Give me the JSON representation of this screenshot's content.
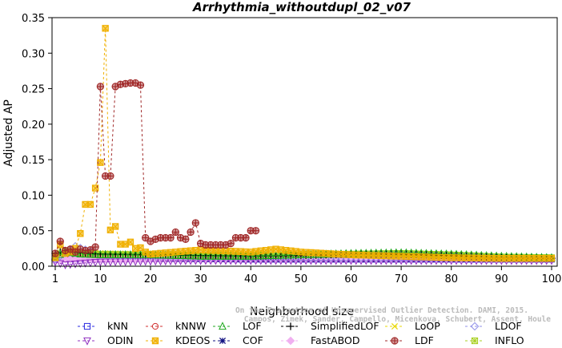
{
  "chart_data": {
    "type": "line",
    "title": "Arrhythmia_withoutdupl_02_v07",
    "xlabel": "Neighborhood size",
    "ylabel": "Adjusted AP",
    "xlim": [
      1,
      100
    ],
    "ylim": [
      0,
      0.35
    ],
    "xticks": [
      1,
      10,
      20,
      30,
      40,
      50,
      60,
      70,
      80,
      90,
      100
    ],
    "yticks": [
      "0.00",
      "0.05",
      "0.10",
      "0.15",
      "0.20",
      "0.25",
      "0.30",
      "0.35"
    ],
    "grid": false,
    "legend_position": "bottom",
    "watermark": [
      "Campos, Zimek, Sander, Campello, Micenkova, Schubert, Assent, Houle",
      "On the Evaluation of Unsupervised Outlier Detection. DAMI, 2015."
    ],
    "series": [
      {
        "name": "kNN",
        "color": "#2929e0",
        "marker": "square",
        "max_k": 100,
        "points": [
          [
            1,
            0.011
          ],
          [
            5,
            0.01
          ],
          [
            10,
            0.011
          ],
          [
            20,
            0.011
          ],
          [
            40,
            0.01
          ],
          [
            60,
            0.01
          ],
          [
            80,
            0.01
          ],
          [
            100,
            0.01
          ]
        ]
      },
      {
        "name": "kNNW",
        "color": "#d03030",
        "marker": "circle",
        "max_k": 100,
        "points": [
          [
            1,
            0.011
          ],
          [
            5,
            0.011
          ],
          [
            10,
            0.011
          ],
          [
            20,
            0.011
          ],
          [
            40,
            0.01
          ],
          [
            60,
            0.01
          ],
          [
            80,
            0.01
          ],
          [
            100,
            0.01
          ]
        ]
      },
      {
        "name": "LOF",
        "color": "#22aa22",
        "marker": "triangle",
        "max_k": 100,
        "points": [
          [
            1,
            0.013
          ],
          [
            3,
            0.02
          ],
          [
            6,
            0.017
          ],
          [
            10,
            0.016
          ],
          [
            20,
            0.016
          ],
          [
            30,
            0.014
          ],
          [
            40,
            0.014
          ],
          [
            50,
            0.016
          ],
          [
            60,
            0.018
          ],
          [
            70,
            0.019
          ],
          [
            80,
            0.017
          ],
          [
            90,
            0.014
          ],
          [
            100,
            0.012
          ]
        ]
      },
      {
        "name": "SimplifiedLOF",
        "color": "#000000",
        "marker": "plus",
        "max_k": 100,
        "points": [
          [
            1,
            0.018
          ],
          [
            3,
            0.022
          ],
          [
            6,
            0.019
          ],
          [
            10,
            0.017
          ],
          [
            20,
            0.016
          ],
          [
            30,
            0.015
          ],
          [
            40,
            0.014
          ],
          [
            50,
            0.015
          ],
          [
            60,
            0.017
          ],
          [
            70,
            0.017
          ],
          [
            80,
            0.015
          ],
          [
            90,
            0.012
          ],
          [
            100,
            0.011
          ]
        ]
      },
      {
        "name": "LoOP",
        "color": "#e8d800",
        "marker": "x",
        "max_k": 100,
        "points": [
          [
            1,
            0.015
          ],
          [
            3,
            0.02
          ],
          [
            6,
            0.02
          ],
          [
            10,
            0.018
          ],
          [
            20,
            0.017
          ],
          [
            30,
            0.016
          ],
          [
            40,
            0.015
          ],
          [
            50,
            0.016
          ],
          [
            60,
            0.017
          ],
          [
            70,
            0.017
          ],
          [
            80,
            0.015
          ],
          [
            90,
            0.012
          ],
          [
            100,
            0.011
          ]
        ]
      },
      {
        "name": "LDOF",
        "color": "#9090e8",
        "marker": "diamond",
        "max_k": 100,
        "points": [
          [
            1,
            0.01
          ],
          [
            5,
            0.028
          ],
          [
            10,
            0.016
          ],
          [
            20,
            0.014
          ],
          [
            40,
            0.013
          ],
          [
            60,
            0.012
          ],
          [
            80,
            0.012
          ],
          [
            100,
            0.011
          ]
        ]
      },
      {
        "name": "ODIN",
        "color": "#9030c0",
        "marker": "triangle-down",
        "max_k": 100,
        "points": [
          [
            1,
            0.006
          ],
          [
            3,
            0.002
          ],
          [
            6,
            0.004
          ],
          [
            10,
            0.006
          ],
          [
            20,
            0.007
          ],
          [
            30,
            0.008
          ],
          [
            50,
            0.008
          ],
          [
            70,
            0.008
          ],
          [
            100,
            0.008
          ]
        ]
      },
      {
        "name": "KDEOS",
        "color": "#f0b000",
        "marker": "square-x",
        "max_k": 100,
        "points": [
          [
            1,
            0.012
          ],
          [
            2,
            0.03
          ],
          [
            3,
            0.018
          ],
          [
            4,
            0.02
          ],
          [
            5,
            0.025
          ],
          [
            6,
            0.046
          ],
          [
            7,
            0.087
          ],
          [
            8,
            0.087
          ],
          [
            9,
            0.11
          ],
          [
            10,
            0.146
          ],
          [
            11,
            0.335
          ],
          [
            12,
            0.051
          ],
          [
            13,
            0.056
          ],
          [
            14,
            0.031
          ],
          [
            15,
            0.031
          ],
          [
            16,
            0.034
          ],
          [
            17,
            0.025
          ],
          [
            18,
            0.026
          ],
          [
            19,
            0.02
          ],
          [
            20,
            0.017
          ],
          [
            25,
            0.02
          ],
          [
            30,
            0.023
          ],
          [
            40,
            0.02
          ],
          [
            45,
            0.024
          ],
          [
            50,
            0.02
          ],
          [
            60,
            0.016
          ],
          [
            70,
            0.014
          ],
          [
            80,
            0.012
          ],
          [
            90,
            0.011
          ],
          [
            100,
            0.011
          ]
        ]
      },
      {
        "name": "COF",
        "color": "#101080",
        "marker": "star",
        "max_k": 100,
        "points": [
          [
            1,
            0.01
          ],
          [
            5,
            0.012
          ],
          [
            10,
            0.01
          ],
          [
            20,
            0.011
          ],
          [
            40,
            0.01
          ],
          [
            60,
            0.01
          ],
          [
            80,
            0.01
          ],
          [
            100,
            0.01
          ]
        ]
      },
      {
        "name": "FastABOD",
        "color": "#f0b0f0",
        "marker": "diamond-filled",
        "max_k": 100,
        "points": [
          [
            1,
            0.008
          ],
          [
            3,
            0.01
          ],
          [
            5,
            0.01
          ],
          [
            10,
            0.01
          ],
          [
            20,
            0.01
          ],
          [
            40,
            0.01
          ],
          [
            60,
            0.01
          ],
          [
            80,
            0.01
          ],
          [
            100,
            0.01
          ]
        ]
      },
      {
        "name": "LDF",
        "color": "#a02828",
        "marker": "circle-plus",
        "max_k": 41,
        "points": [
          [
            1,
            0.018
          ],
          [
            2,
            0.035
          ],
          [
            3,
            0.022
          ],
          [
            4,
            0.024
          ],
          [
            5,
            0.02
          ],
          [
            6,
            0.024
          ],
          [
            7,
            0.022
          ],
          [
            8,
            0.023
          ],
          [
            9,
            0.027
          ],
          [
            10,
            0.253
          ],
          [
            11,
            0.127
          ],
          [
            12,
            0.127
          ],
          [
            13,
            0.253
          ],
          [
            14,
            0.256
          ],
          [
            15,
            0.257
          ],
          [
            16,
            0.258
          ],
          [
            17,
            0.258
          ],
          [
            18,
            0.255
          ],
          [
            19,
            0.04
          ],
          [
            20,
            0.035
          ],
          [
            21,
            0.038
          ],
          [
            22,
            0.04
          ],
          [
            23,
            0.04
          ],
          [
            24,
            0.04
          ],
          [
            25,
            0.048
          ],
          [
            26,
            0.04
          ],
          [
            27,
            0.038
          ],
          [
            28,
            0.048
          ],
          [
            29,
            0.061
          ],
          [
            30,
            0.032
          ],
          [
            31,
            0.03
          ],
          [
            32,
            0.03
          ],
          [
            33,
            0.03
          ],
          [
            34,
            0.03
          ],
          [
            35,
            0.03
          ],
          [
            36,
            0.032
          ],
          [
            37,
            0.04
          ],
          [
            38,
            0.04
          ],
          [
            39,
            0.04
          ],
          [
            40,
            0.05
          ],
          [
            41,
            0.05
          ]
        ]
      },
      {
        "name": "INFLO",
        "color": "#a8d020",
        "marker": "asterisk-square",
        "max_k": 100,
        "points": [
          [
            1,
            0.015
          ],
          [
            3,
            0.022
          ],
          [
            6,
            0.018
          ],
          [
            10,
            0.017
          ],
          [
            20,
            0.016
          ],
          [
            30,
            0.015
          ],
          [
            40,
            0.015
          ],
          [
            50,
            0.016
          ],
          [
            60,
            0.017
          ],
          [
            70,
            0.018
          ],
          [
            80,
            0.016
          ],
          [
            90,
            0.013
          ],
          [
            100,
            0.012
          ]
        ]
      }
    ]
  }
}
